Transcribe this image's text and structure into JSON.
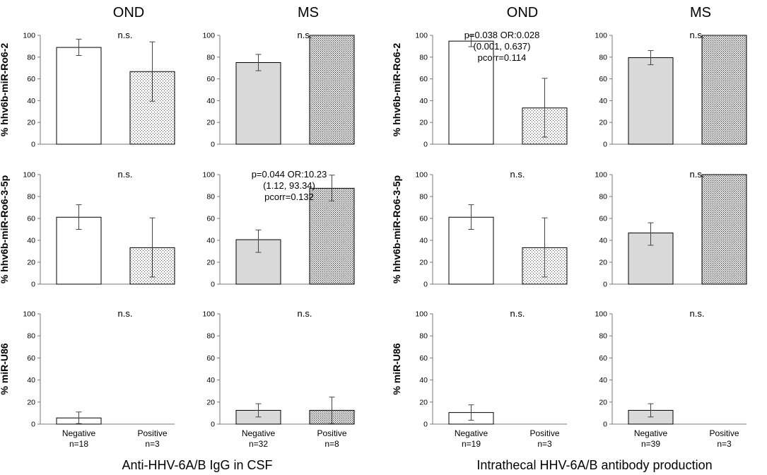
{
  "chart_data": {
    "type": "bar",
    "group_titles": [
      "OND",
      "MS",
      "OND",
      "MS"
    ],
    "section_labels": [
      "Anti-HHV-6A/B IgG in CSF",
      "Intrathecal HHV-6A/B antibody production"
    ],
    "row_labels": [
      "% hhv6b-miR-Ro6-2",
      "% hhv6b-miR-Ro6-3-5p",
      "% miR-U86"
    ],
    "categories": [
      "Negative",
      "Positive"
    ],
    "ylim": [
      0,
      100
    ],
    "yticks": [
      0,
      20,
      40,
      60,
      80,
      100
    ],
    "colors": {
      "ond_negative": "#ffffff",
      "ms_negative": "#d9d9d9",
      "outline": "#000000",
      "grid_line": "#777777"
    },
    "panels": [
      {
        "row": 0,
        "col": 0,
        "n": [
          "n=18",
          "n=3"
        ],
        "values": [
          88.9,
          66.7
        ],
        "err_low": [
          81.5,
          39.5
        ],
        "err_high": [
          96.5,
          94.0
        ],
        "annotation": [
          "n.s."
        ]
      },
      {
        "row": 0,
        "col": 1,
        "n": [
          "n=32",
          "n=8"
        ],
        "values": [
          75.0,
          100
        ],
        "err_low": [
          67.5,
          100
        ],
        "err_high": [
          82.5,
          100
        ],
        "annotation": [
          "n.s."
        ]
      },
      {
        "row": 0,
        "col": 2,
        "n": [
          "n=19",
          "n=3"
        ],
        "values": [
          94.7,
          33.3
        ],
        "err_low": [
          89.6,
          6.5
        ],
        "err_high": [
          99.8,
          60.5
        ],
        "annotation": [
          "p=0.038 OR:0.028",
          "(0.001, 0.637)",
          "pcorr=0.114"
        ]
      },
      {
        "row": 0,
        "col": 3,
        "n": [
          "n=39",
          "n=3"
        ],
        "values": [
          79.5,
          100
        ],
        "err_low": [
          73.0,
          100
        ],
        "err_high": [
          86.0,
          100
        ],
        "annotation": [
          "n.s."
        ]
      },
      {
        "row": 1,
        "col": 0,
        "n": [
          "n=18",
          "n=3"
        ],
        "values": [
          61.1,
          33.3
        ],
        "err_low": [
          50.0,
          6.5
        ],
        "err_high": [
          72.5,
          60.5
        ],
        "annotation": [
          "n.s."
        ]
      },
      {
        "row": 1,
        "col": 1,
        "n": [
          "n=32",
          "n=8"
        ],
        "values": [
          40.6,
          87.5
        ],
        "err_low": [
          29.0,
          76.0
        ],
        "err_high": [
          49.5,
          99.5
        ],
        "annotation": [
          "p=0.044 OR:10.23",
          "(1.12, 93.34)",
          "pcorr=0.132"
        ]
      },
      {
        "row": 1,
        "col": 2,
        "n": [
          "n=19",
          "n=3"
        ],
        "values": [
          61.1,
          33.3
        ],
        "err_low": [
          50.0,
          6.5
        ],
        "err_high": [
          72.5,
          60.5
        ],
        "annotation": [
          "n.s."
        ]
      },
      {
        "row": 1,
        "col": 3,
        "n": [
          "n=39",
          "n=3"
        ],
        "values": [
          46.7,
          100
        ],
        "err_low": [
          35.5,
          100
        ],
        "err_high": [
          56.0,
          100
        ],
        "annotation": [
          "n.s."
        ]
      },
      {
        "row": 2,
        "col": 0,
        "n": [
          "n=18",
          "n=3"
        ],
        "values": [
          5.6,
          0
        ],
        "err_low": [
          0.5,
          0
        ],
        "err_high": [
          11.0,
          0
        ],
        "annotation": [
          "n.s."
        ]
      },
      {
        "row": 2,
        "col": 1,
        "n": [
          "n=32",
          "n=8"
        ],
        "values": [
          12.5,
          12.5
        ],
        "err_low": [
          6.5,
          0.5
        ],
        "err_high": [
          18.5,
          24.5
        ],
        "annotation": [
          "n.s."
        ]
      },
      {
        "row": 2,
        "col": 2,
        "n": [
          "n=19",
          "n=3"
        ],
        "values": [
          10.5,
          0
        ],
        "err_low": [
          3.5,
          0
        ],
        "err_high": [
          17.5,
          0
        ],
        "annotation": [
          "n.s."
        ]
      },
      {
        "row": 2,
        "col": 3,
        "n": [
          "n=39",
          "n=3"
        ],
        "values": [
          12.5,
          0
        ],
        "err_low": [
          6.5,
          0
        ],
        "err_high": [
          18.5,
          0
        ],
        "annotation": [
          "n.s."
        ]
      }
    ]
  }
}
